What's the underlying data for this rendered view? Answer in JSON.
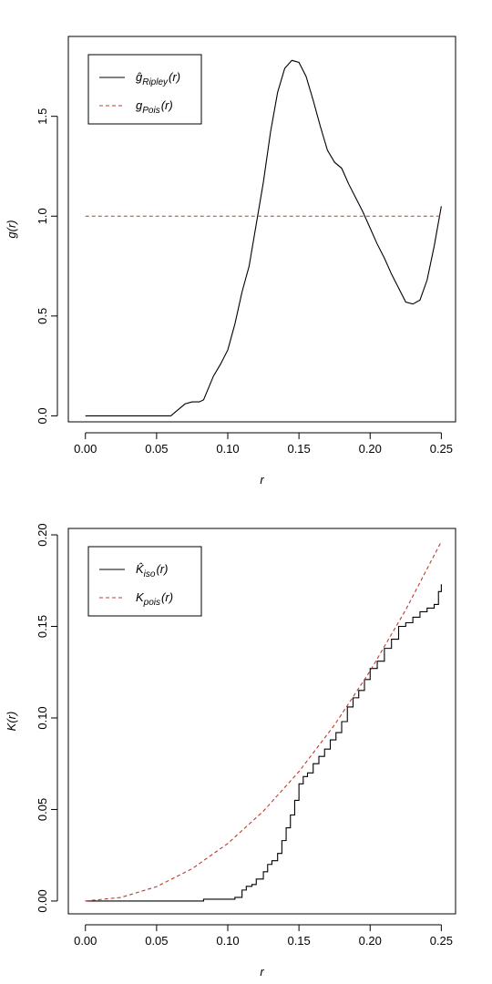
{
  "chart_data": [
    {
      "type": "line",
      "xlabel": "r",
      "ylabel": "g(r)",
      "xlim": [
        -0.012,
        0.26
      ],
      "ylim": [
        -0.03,
        1.9
      ],
      "xticks": [
        0.0,
        0.05,
        0.1,
        0.15,
        0.2,
        0.25
      ],
      "xtick_labels": [
        "0.00",
        "0.05",
        "0.10",
        "0.15",
        "0.20",
        "0.25"
      ],
      "yticks": [
        0.0,
        0.5,
        1.0,
        1.5
      ],
      "ytick_labels": [
        "0.0",
        "0.5",
        "1.0",
        "1.5"
      ],
      "legend_position": "top-left",
      "series": [
        {
          "name": "ĝ_Ripley(r)",
          "label_main": "ĝ",
          "label_sub": "Ripley",
          "label_tail": "(r)",
          "color": "#000000",
          "dash": "solid",
          "x": [
            0.0,
            0.06,
            0.065,
            0.07,
            0.075,
            0.08,
            0.083,
            0.09,
            0.095,
            0.1,
            0.105,
            0.11,
            0.115,
            0.12,
            0.125,
            0.13,
            0.135,
            0.14,
            0.145,
            0.15,
            0.155,
            0.16,
            0.165,
            0.17,
            0.175,
            0.18,
            0.185,
            0.19,
            0.195,
            0.2,
            0.205,
            0.21,
            0.215,
            0.22,
            0.225,
            0.23,
            0.235,
            0.24,
            0.245,
            0.25
          ],
          "y": [
            0.0,
            0.0,
            0.03,
            0.06,
            0.07,
            0.07,
            0.08,
            0.2,
            0.26,
            0.33,
            0.46,
            0.62,
            0.75,
            0.96,
            1.17,
            1.42,
            1.62,
            1.74,
            1.78,
            1.77,
            1.7,
            1.58,
            1.45,
            1.33,
            1.27,
            1.24,
            1.16,
            1.09,
            1.02,
            0.94,
            0.86,
            0.79,
            0.71,
            0.64,
            0.57,
            0.56,
            0.58,
            0.68,
            0.85,
            1.05
          ]
        },
        {
          "name": "g_Pois(r)",
          "label_main": "g",
          "label_sub": "Pois",
          "label_tail": "(r)",
          "color": "#c0392b",
          "dash": "dashed",
          "x": [
            0.0,
            0.25
          ],
          "y": [
            1.0,
            1.0
          ]
        }
      ]
    },
    {
      "type": "line",
      "xlabel": "r",
      "ylabel": "K(r)",
      "xlim": [
        -0.012,
        0.26
      ],
      "ylim": [
        -0.007,
        0.2035
      ],
      "xticks": [
        0.0,
        0.05,
        0.1,
        0.15,
        0.2,
        0.25
      ],
      "xtick_labels": [
        "0.00",
        "0.05",
        "0.10",
        "0.15",
        "0.20",
        "0.25"
      ],
      "yticks": [
        0.0,
        0.05,
        0.1,
        0.15,
        0.2
      ],
      "ytick_labels": [
        "0.00",
        "0.05",
        "0.10",
        "0.15",
        "0.20"
      ],
      "legend_position": "top-left",
      "series": [
        {
          "name": "K̂_iso(r)",
          "label_main": "K̂",
          "label_sub": "iso",
          "label_tail": "(r)",
          "color": "#000000",
          "dash": "solid",
          "step": true,
          "x": [
            0.0,
            0.083,
            0.105,
            0.11,
            0.113,
            0.117,
            0.12,
            0.125,
            0.128,
            0.131,
            0.135,
            0.138,
            0.141,
            0.144,
            0.147,
            0.15,
            0.153,
            0.156,
            0.16,
            0.164,
            0.168,
            0.172,
            0.176,
            0.18,
            0.184,
            0.188,
            0.192,
            0.196,
            0.2,
            0.205,
            0.21,
            0.215,
            0.22,
            0.225,
            0.23,
            0.235,
            0.24,
            0.245,
            0.248,
            0.25
          ],
          "y": [
            0.0,
            0.001,
            0.002,
            0.006,
            0.008,
            0.009,
            0.012,
            0.016,
            0.02,
            0.022,
            0.026,
            0.033,
            0.04,
            0.047,
            0.055,
            0.064,
            0.068,
            0.07,
            0.075,
            0.079,
            0.083,
            0.088,
            0.092,
            0.098,
            0.106,
            0.111,
            0.115,
            0.121,
            0.127,
            0.131,
            0.138,
            0.143,
            0.15,
            0.152,
            0.155,
            0.158,
            0.16,
            0.162,
            0.169,
            0.173
          ]
        },
        {
          "name": "K_pois(r)",
          "label_main": "K",
          "label_sub": "pois",
          "label_tail": "(r)",
          "color": "#c0392b",
          "dash": "dashed",
          "function": "pi*r^2",
          "x": [
            0.0,
            0.025,
            0.05,
            0.075,
            0.1,
            0.125,
            0.15,
            0.175,
            0.2,
            0.225,
            0.25
          ],
          "y": [
            0.0,
            0.00196,
            0.00785,
            0.01767,
            0.03142,
            0.04909,
            0.07069,
            0.09621,
            0.12566,
            0.15904,
            0.19635
          ]
        }
      ]
    }
  ]
}
